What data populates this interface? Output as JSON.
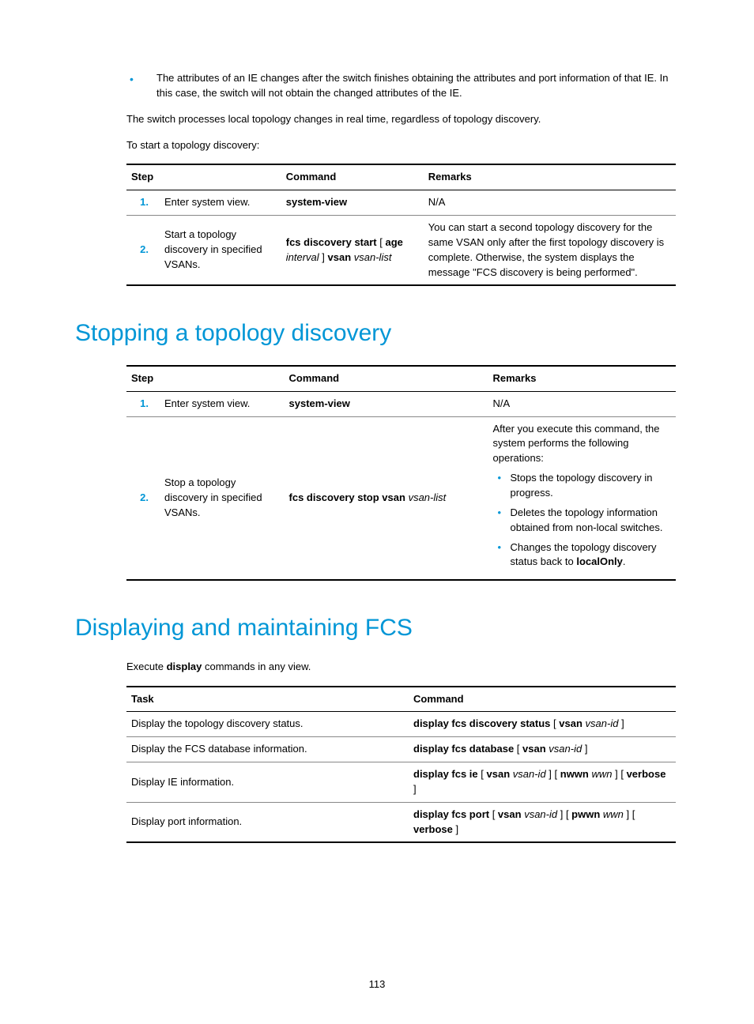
{
  "intro": {
    "bullet": "The attributes of an IE changes after the switch finishes obtaining the attributes and port information of that IE. In this case, the switch will not obtain the changed attributes of the IE.",
    "p1": "The switch processes local topology changes in real time, regardless of topology discovery.",
    "p2": "To start a topology discovery:"
  },
  "table1": {
    "head_step": "Step",
    "head_cmd": "Command",
    "head_rem": "Remarks",
    "rows": [
      {
        "num": "1.",
        "desc": "Enter system view.",
        "cmd_html": "<b>system-view</b>",
        "rem_html": "N/A"
      },
      {
        "num": "2.",
        "desc": "Start a topology discovery in specified VSANs.",
        "cmd_html": "<b>fcs discovery start</b> [ <b>age</b> <i>interval</i> ] <b>vsan</b> <i>vsan-list</i>",
        "rem_html": "You can start a second topology discovery for the same VSAN only after the first topology discovery is complete. Otherwise, the system displays the message \"FCS discovery is being performed\"."
      }
    ]
  },
  "h2_stop": "Stopping a topology discovery",
  "table2": {
    "head_step": "Step",
    "head_cmd": "Command",
    "head_rem": "Remarks",
    "rows": [
      {
        "num": "1.",
        "desc": "Enter system view.",
        "cmd_html": "<b>system-view</b>",
        "rem_html": "N/A"
      },
      {
        "num": "2.",
        "desc": "Stop a topology discovery in specified VSANs.",
        "cmd_html": "<b>fcs discovery stop vsan</b> <i>vsan-list</i>",
        "rem_intro": "After you execute this command, the system performs the following operations:",
        "rem_items": [
          "Stops the topology discovery in progress.",
          "Deletes the topology information obtained from non-local switches.",
          "Changes the topology discovery status back to <b>localOnly</b>."
        ]
      }
    ]
  },
  "h2_display": "Displaying and maintaining FCS",
  "display_intro_pre": "Execute ",
  "display_intro_bold": "display",
  "display_intro_post": " commands in any view.",
  "table3": {
    "head_task": "Task",
    "head_cmd": "Command",
    "rows": [
      {
        "task": "Display the topology discovery status.",
        "cmd_html": "<b>display fcs discovery status</b> [ <b>vsan</b> <i>vsan-id</i> ]"
      },
      {
        "task": "Display the FCS database information.",
        "cmd_html": "<b>display fcs database</b> [ <b>vsan</b> <i>vsan-id</i> ]"
      },
      {
        "task": "Display IE information.",
        "cmd_html": "<b>display fcs ie</b> [ <b>vsan</b> <i>vsan-id</i> ] [ <b>nwwn</b> <i>wwn</i> ] [ <b>verbose</b> ]"
      },
      {
        "task": "Display port information.",
        "cmd_html": "<b>display fcs port</b> [ <b>vsan</b> <i>vsan-id</i> ] [ <b>pwwn</b> <i>wwn</i> ] [ <b>verbose</b> ]"
      }
    ]
  },
  "page_number": "113"
}
